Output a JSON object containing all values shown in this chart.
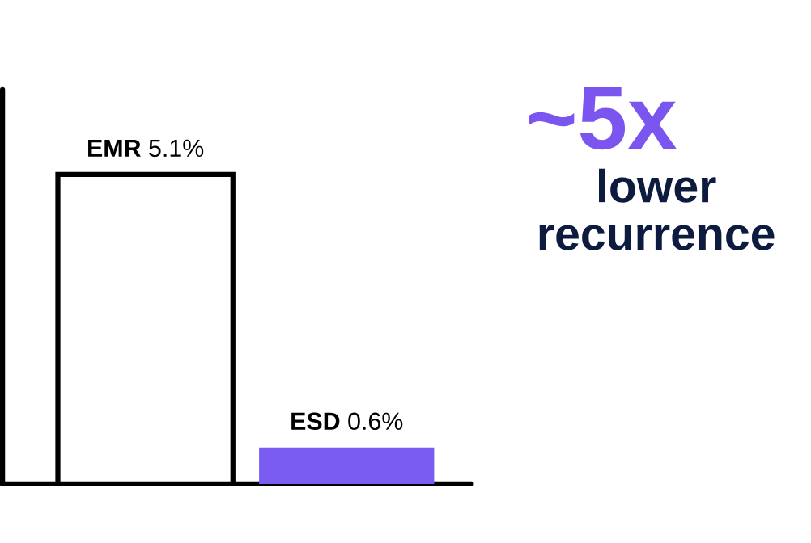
{
  "chart_data": {
    "type": "bar",
    "categories": [
      "EMR",
      "ESD"
    ],
    "values": [
      5.1,
      0.6
    ],
    "value_labels": [
      "5.1%",
      "0.6%"
    ],
    "colors": [
      "#ffffff",
      "#7a5cf2"
    ],
    "ylim": [
      0,
      6.5
    ],
    "annotations": [
      "~5x",
      "lower recurrence"
    ]
  }
}
